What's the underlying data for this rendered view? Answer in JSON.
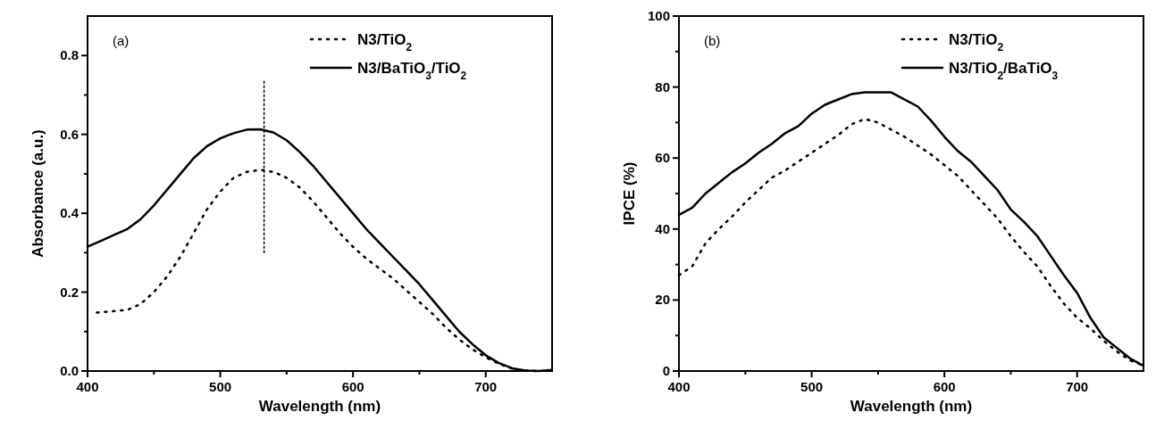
{
  "chart_data": [
    {
      "type": "line",
      "xlabel": "Wavelength (nm)",
      "ylabel": "Absorbance (a.u.)",
      "annotations": [
        "(a)"
      ],
      "legend": "top right",
      "xlim": [
        400,
        750
      ],
      "ylim": [
        0,
        0.9
      ],
      "xticks": [
        400,
        {
          "value": 450,
          "label": null
        },
        500,
        {
          "value": 550,
          "label": null
        },
        600,
        {
          "value": 650,
          "label": null
        },
        700
      ],
      "yticks": [
        {
          "value": 0,
          "label": "0.0"
        },
        {
          "value": 0.1,
          "label": null
        },
        0.2,
        {
          "value": 0.3,
          "label": null
        },
        0.4,
        {
          "value": 0.5,
          "label": null
        },
        0.6,
        {
          "value": 0.7,
          "label": null
        },
        0.8
      ],
      "series": [
        {
          "name": "N3/TiO$_{2}$",
          "color": "#000000",
          "line_style": "dotted",
          "x": [
            407,
            420,
            430,
            440,
            450,
            460,
            470,
            480,
            490,
            500,
            510,
            520,
            530,
            540,
            550,
            560,
            570,
            580,
            590,
            600,
            610,
            620,
            630,
            640,
            650,
            660,
            670,
            680,
            690,
            700,
            710,
            720,
            730,
            740
          ],
          "values": [
            0.148,
            0.152,
            0.155,
            0.17,
            0.2,
            0.24,
            0.29,
            0.35,
            0.41,
            0.455,
            0.49,
            0.505,
            0.51,
            0.505,
            0.49,
            0.465,
            0.43,
            0.39,
            0.35,
            0.315,
            0.285,
            0.26,
            0.235,
            0.205,
            0.175,
            0.145,
            0.11,
            0.08,
            0.055,
            0.035,
            0.018,
            0.006,
            0.001,
            0
          ]
        },
        {
          "name": "N3/BaTiO$_{3}$/TiO$_{2}$",
          "color": "#000000",
          "line_style": "solid",
          "x": [
            400,
            410,
            420,
            430,
            440,
            450,
            460,
            470,
            480,
            490,
            500,
            510,
            520,
            530,
            540,
            550,
            560,
            570,
            580,
            590,
            600,
            610,
            620,
            630,
            640,
            650,
            660,
            670,
            680,
            690,
            700,
            710,
            720,
            730,
            740,
            750
          ],
          "values": [
            0.315,
            0.33,
            0.345,
            0.36,
            0.385,
            0.42,
            0.46,
            0.5,
            0.54,
            0.57,
            0.59,
            0.603,
            0.612,
            0.613,
            0.605,
            0.585,
            0.555,
            0.52,
            0.48,
            0.44,
            0.4,
            0.36,
            0.325,
            0.29,
            0.255,
            0.22,
            0.18,
            0.14,
            0.1,
            0.068,
            0.04,
            0.02,
            0.007,
            0.001,
            0,
            0.003
          ]
        },
        {
          "color": "#000000",
          "line_style": "dotted",
          "x": [
            533,
            533
          ],
          "values": [
            0.3,
            0.74
          ]
        }
      ]
    },
    {
      "type": "line",
      "xlabel": "Wavelength (nm)",
      "ylabel": "IPCE (%)",
      "annotations": [
        "(b)"
      ],
      "legend": "top right",
      "xlim": [
        400,
        750
      ],
      "ylim": [
        0,
        100
      ],
      "xticks": [
        400,
        {
          "value": 450,
          "label": null
        },
        500,
        {
          "value": 550,
          "label": null
        },
        600,
        {
          "value": 650,
          "label": null
        },
        700
      ],
      "yticks": [
        0,
        {
          "value": 10,
          "label": null
        },
        20,
        {
          "value": 30,
          "label": null
        },
        40,
        {
          "value": 50,
          "label": null
        },
        60,
        {
          "value": 70,
          "label": null
        },
        80,
        {
          "value": 90,
          "label": null
        },
        100
      ],
      "series": [
        {
          "name": "N3/TiO$_{2}$",
          "color": "#000000",
          "line_style": "dotted",
          "x": [
            400,
            410,
            420,
            430,
            440,
            450,
            460,
            470,
            480,
            490,
            500,
            510,
            520,
            530,
            540,
            550,
            560,
            570,
            580,
            590,
            600,
            610,
            620,
            630,
            640,
            650,
            660,
            670,
            680,
            690,
            700,
            710,
            720,
            730,
            740,
            750
          ],
          "values": [
            27,
            29.5,
            36,
            40,
            43.5,
            47.5,
            51,
            54.5,
            56.5,
            59,
            61.5,
            64,
            66.5,
            69.5,
            71,
            70,
            68,
            66,
            63.5,
            61,
            58,
            55,
            51,
            47,
            43,
            38,
            33.5,
            29.5,
            24,
            19,
            15,
            12,
            8.5,
            5.5,
            3,
            1.5
          ]
        },
        {
          "name": "N3/TiO$_{2}$/BaTiO$_{3}$",
          "color": "#000000",
          "line_style": "solid",
          "x": [
            400,
            410,
            420,
            430,
            440,
            450,
            460,
            470,
            480,
            490,
            500,
            510,
            520,
            530,
            540,
            550,
            560,
            570,
            580,
            590,
            600,
            610,
            620,
            630,
            640,
            650,
            660,
            670,
            680,
            690,
            700,
            710,
            720,
            730,
            740,
            750
          ],
          "values": [
            44,
            46,
            50,
            53,
            56,
            58.5,
            61.5,
            64,
            67,
            69,
            72.5,
            75,
            76.5,
            78,
            78.5,
            78.5,
            78.5,
            76.5,
            74.5,
            70.5,
            66,
            62,
            59,
            55,
            51,
            45.5,
            42,
            38,
            32.5,
            27,
            22,
            15,
            9.5,
            6.5,
            3.5,
            1.5
          ]
        }
      ]
    }
  ]
}
